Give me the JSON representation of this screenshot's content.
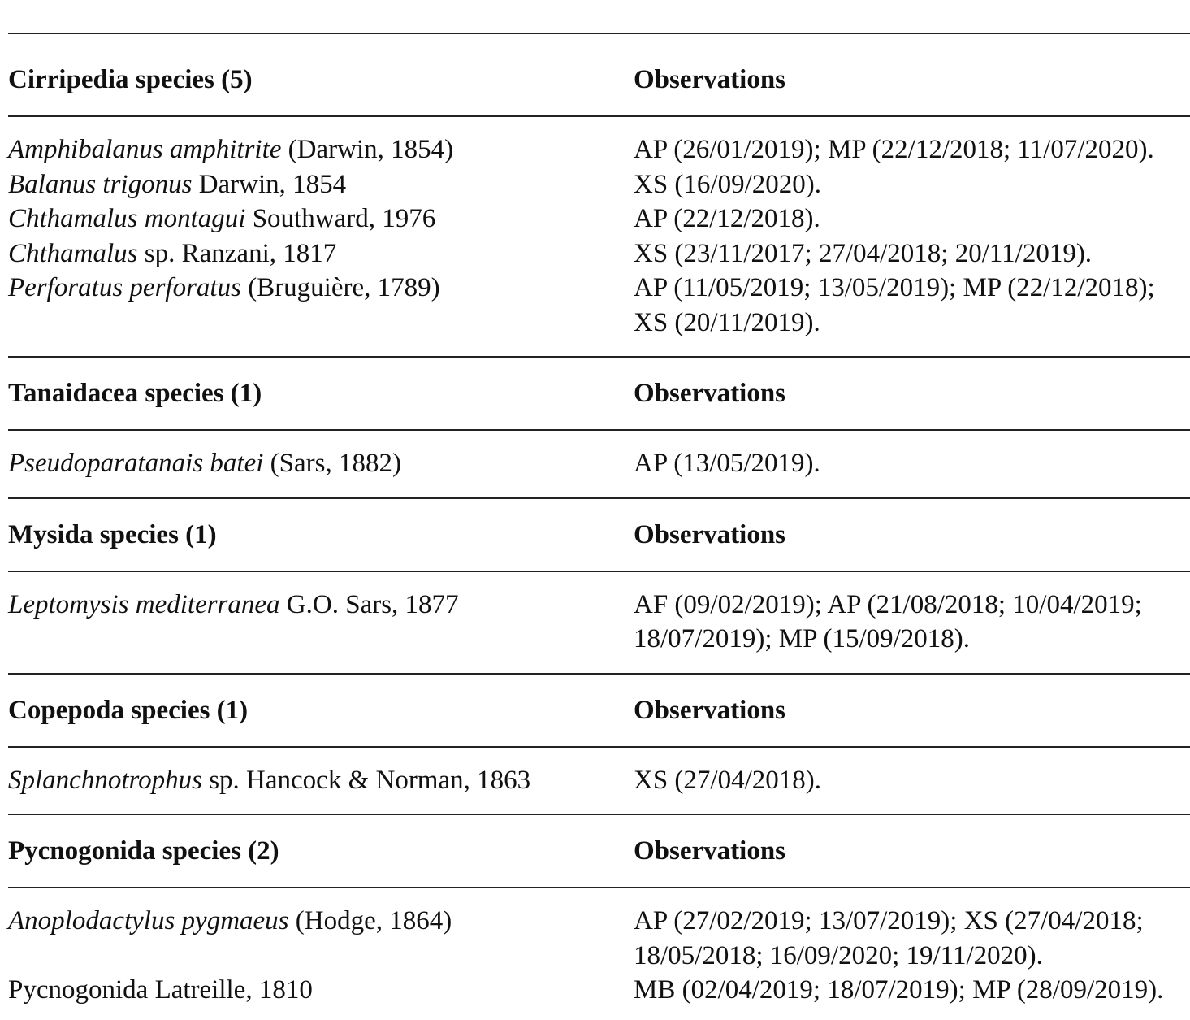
{
  "sections": [
    {
      "header": "Cirripedia species (5)",
      "obs_header": "Observations",
      "rows": [
        {
          "genus": "Amphibalanus amphitrite",
          "author": " (Darwin, 1854)",
          "obs": "AP (26/01/2019); MP (22/12/2018; 11/07/2020)."
        },
        {
          "genus": "Balanus trigonus",
          "author": " Darwin, 1854",
          "obs": "XS (16/09/2020)."
        },
        {
          "genus": "Chthamalus montagui",
          "author": " Southward, 1976",
          "obs": "AP (22/12/2018)."
        },
        {
          "genus": "Chthamalus",
          "author": " sp. Ranzani, 1817",
          "obs": "XS (23/11/2017; 27/04/2018; 20/11/2019)."
        },
        {
          "genus": "Perforatus perforatus",
          "author": " (Bruguière, 1789)",
          "obs": "AP (11/05/2019; 13/05/2019); MP (22/12/2018); XS (20/11/2019)."
        }
      ]
    },
    {
      "header": "Tanaidacea species (1)",
      "obs_header": "Observations",
      "rows": [
        {
          "genus": "Pseudoparatanais batei",
          "author": " (Sars, 1882)",
          "obs": "AP (13/05/2019)."
        }
      ]
    },
    {
      "header": "Mysida species (1)",
      "obs_header": "Observations",
      "rows": [
        {
          "genus": "Leptomysis mediterranea",
          "author": " G.O. Sars, 1877",
          "obs": "AF (09/02/2019); AP (21/08/2018; 10/04/2019; 18/07/2019); MP (15/09/2018)."
        }
      ]
    },
    {
      "header": "Copepoda species (1)",
      "obs_header": "Observations",
      "rows": [
        {
          "genus": "Splanchnotrophus",
          "author": " sp. Hancock & Norman, 1863",
          "obs": "XS (27/04/2018)."
        }
      ]
    },
    {
      "header": "Pycnogonida species (2)",
      "obs_header": "Observations",
      "rows": [
        {
          "genus": "Anoplodactylus pygmaeus",
          "author": " (Hodge, 1864)",
          "obs": "AP (27/02/2019; 13/07/2019); XS (27/04/2018; 18/05/2018; 16/09/2020; 19/11/2020)."
        },
        {
          "genus": "",
          "author": "Pycnogonida Latreille, 1810",
          "obs": "MB (02/04/2019; 18/07/2019); MP (28/09/2019)."
        }
      ]
    }
  ]
}
